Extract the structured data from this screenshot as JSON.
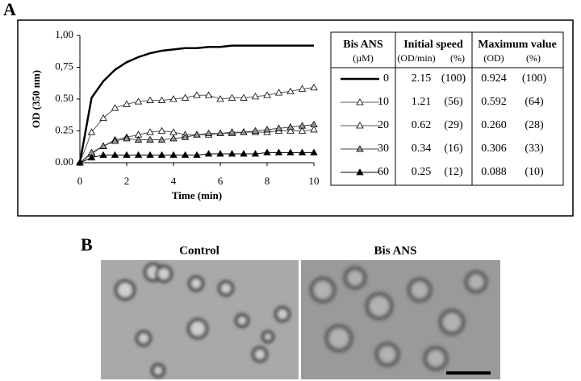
{
  "panel_a": {
    "label": "A"
  },
  "chart_data": {
    "type": "line",
    "xlabel": "Time (min)",
    "ylabel": "OD (350 nm)",
    "x": [
      0,
      0.5,
      1,
      1.5,
      2,
      2.5,
      3,
      3.5,
      4,
      4.5,
      5,
      5.5,
      6,
      6.5,
      7,
      7.5,
      8,
      8.5,
      9,
      9.5,
      10
    ],
    "xlim": [
      0,
      10
    ],
    "xticks": [
      0,
      2,
      4,
      6,
      8,
      10
    ],
    "ylim": [
      0,
      1
    ],
    "yticks": [
      {
        "value": 0,
        "label": "0.00"
      },
      {
        "value": 0.25,
        "label": "0.25"
      },
      {
        "value": 0.5,
        "label": "0.50"
      },
      {
        "value": 0.75,
        "label": "0,75"
      },
      {
        "value": 1,
        "label": "1,00"
      }
    ],
    "series": [
      {
        "name": "0",
        "color": "#000000",
        "marker": "none",
        "width": 2.5,
        "values": [
          0,
          0.51,
          0.64,
          0.73,
          0.79,
          0.83,
          0.86,
          0.88,
          0.89,
          0.9,
          0.9,
          0.91,
          0.91,
          0.92,
          0.92,
          0.92,
          0.92,
          0.92,
          0.92,
          0.92,
          0.92
        ]
      },
      {
        "name": "10",
        "color": "#555555",
        "marker": "open",
        "width": 1,
        "values": [
          0,
          0.24,
          0.35,
          0.43,
          0.46,
          0.48,
          0.49,
          0.49,
          0.5,
          0.51,
          0.53,
          0.53,
          0.5,
          0.51,
          0.51,
          0.52,
          0.53,
          0.55,
          0.56,
          0.58,
          0.59
        ]
      },
      {
        "name": "20",
        "color": "#555555",
        "marker": "open",
        "width": 1,
        "values": [
          0,
          0.07,
          0.13,
          0.18,
          0.2,
          0.22,
          0.24,
          0.25,
          0.24,
          0.22,
          0.22,
          0.22,
          0.23,
          0.23,
          0.24,
          0.24,
          0.24,
          0.25,
          0.25,
          0.25,
          0.26
        ]
      },
      {
        "name": "30",
        "color": "#444444",
        "marker": "gray",
        "width": 1,
        "values": [
          0,
          0.08,
          0.13,
          0.17,
          0.19,
          0.18,
          0.18,
          0.18,
          0.19,
          0.2,
          0.22,
          0.23,
          0.23,
          0.24,
          0.24,
          0.25,
          0.26,
          0.27,
          0.28,
          0.29,
          0.3
        ]
      },
      {
        "name": "60",
        "color": "#000000",
        "marker": "filled",
        "width": 1,
        "values": [
          0,
          0.04,
          0.06,
          0.06,
          0.06,
          0.06,
          0.06,
          0.06,
          0.06,
          0.06,
          0.06,
          0.07,
          0.07,
          0.07,
          0.07,
          0.07,
          0.08,
          0.08,
          0.08,
          0.08,
          0.08
        ]
      }
    ]
  },
  "table": {
    "headers": [
      "Bis ANS",
      "Initial speed",
      "Maximum value"
    ],
    "subheaders": [
      "(µM)",
      "(OD/min)",
      "(%)",
      "(OD)",
      "(%)"
    ],
    "rows": [
      [
        "2.15",
        "(100)",
        "0.924",
        "(100)"
      ],
      [
        "1.21",
        "(56)",
        "0.592",
        "(64)"
      ],
      [
        "0.62",
        "(29)",
        "0.260",
        "(28)"
      ],
      [
        "0.34",
        "(16)",
        "0.306",
        "(33)"
      ],
      [
        "0.25",
        "(12)",
        "0.088",
        "(10)"
      ]
    ]
  },
  "panel_b": {
    "label": "B",
    "titles": [
      "Control",
      "Bis ANS"
    ]
  }
}
